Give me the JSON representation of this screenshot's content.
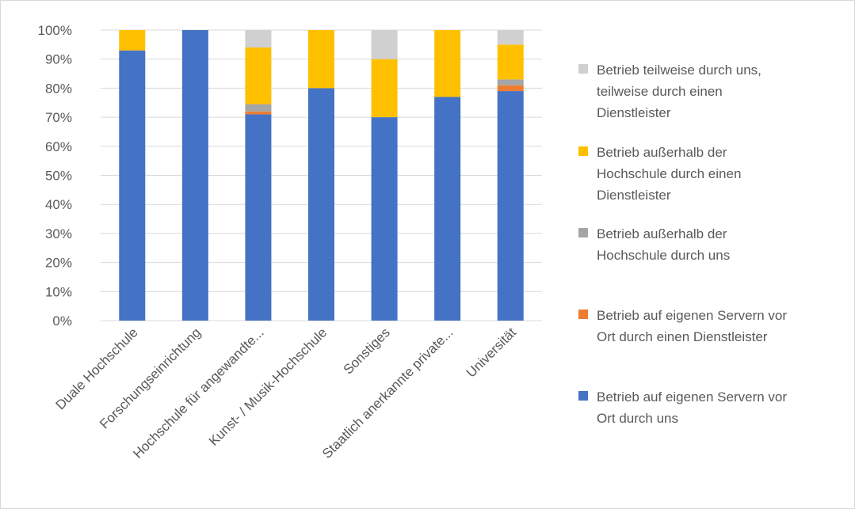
{
  "chart_data": {
    "type": "bar",
    "stacked": true,
    "percent": true,
    "title": "",
    "xlabel": "",
    "ylabel": "",
    "ylim": [
      0,
      100
    ],
    "y_ticks": [
      "0%",
      "10%",
      "20%",
      "30%",
      "40%",
      "50%",
      "60%",
      "70%",
      "80%",
      "90%",
      "100%"
    ],
    "grid": true,
    "legend_position": "right",
    "categories": [
      "Duale Hochschule",
      "Forschungseinrichtung",
      "Hochschule für angewandte...",
      "Kunst- / Musik-Hochschule",
      "Sonstiges",
      "Staatlich anerkannte private...",
      "Universität"
    ],
    "series": [
      {
        "name": "Betrieb auf eigenen Servern vor Ort durch uns",
        "color": "#4472c4",
        "values": [
          93,
          100,
          71,
          80,
          70,
          77,
          79
        ]
      },
      {
        "name": "Betrieb auf eigenen Servern vor Ort durch einen Dienstleister",
        "color": "#ed7d31",
        "values": [
          0,
          0,
          1,
          0,
          0,
          0,
          2
        ]
      },
      {
        "name": "Betrieb außerhalb der Hochschule durch uns",
        "color": "#a5a5a5",
        "values": [
          0,
          0,
          2.5,
          0,
          0,
          0,
          2
        ]
      },
      {
        "name": "Betrieb außerhalb der Hochschule durch einen Dienstleister",
        "color": "#ffc000",
        "values": [
          7,
          0,
          19.5,
          20,
          20,
          23,
          12
        ]
      },
      {
        "name": "Betrieb teilweise durch uns, teilweise durch einen Dienstleister",
        "color": "#d0d0d0",
        "values": [
          0,
          0,
          6,
          0,
          10,
          0,
          5
        ]
      }
    ],
    "legend": [
      {
        "color": "#d0d0d0",
        "lines": [
          "Betrieb teilweise durch uns,",
          "teilweise durch einen",
          "Dienstleister"
        ]
      },
      {
        "color": "#ffc000",
        "lines": [
          "Betrieb außerhalb der",
          "Hochschule durch einen",
          "Dienstleister"
        ]
      },
      {
        "color": "#a5a5a5",
        "lines": [
          "Betrieb außerhalb der",
          "Hochschule durch uns"
        ]
      },
      {
        "color": "#ed7d31",
        "lines": [
          "Betrieb auf eigenen Servern vor",
          "Ort durch einen Dienstleister"
        ]
      },
      {
        "color": "#4472c4",
        "lines": [
          "Betrieb auf eigenen Servern vor",
          "Ort durch uns"
        ]
      }
    ],
    "colors": {
      "grid": "#d9d9d9",
      "axis_text": "#595959",
      "border": "#d9d9d9"
    }
  }
}
